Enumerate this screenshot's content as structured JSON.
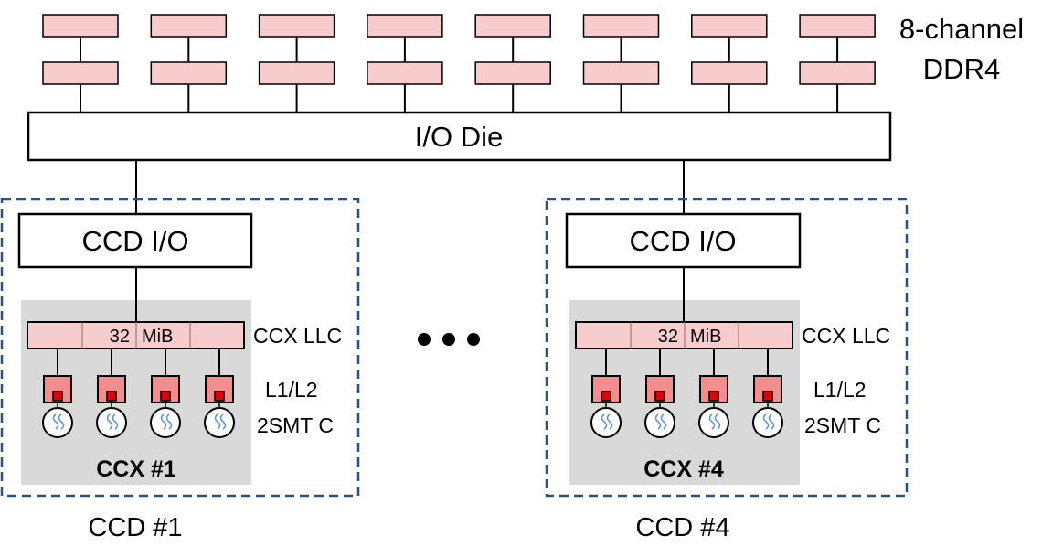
{
  "memory": {
    "label_line1": "8-channel",
    "label_line2": "DDR4",
    "channels": 8,
    "dimms_per_channel": 2
  },
  "io_die": {
    "label": "I/O Die"
  },
  "ccds": [
    {
      "id": "ccd1",
      "label": "CCD #1",
      "ccd_io_label": "CCD I/O",
      "ccx": {
        "label": "CCX #1",
        "llc_number": "32",
        "llc_unit": "MiB",
        "llc_label": "CCX LLC",
        "l1l2_label": "L1/L2",
        "core_label": "2SMT C",
        "cores": 4
      }
    },
    {
      "id": "ccd4",
      "label": "CCD #4",
      "ccd_io_label": "CCD I/O",
      "ccx": {
        "label": "CCX #4",
        "llc_number": "32",
        "llc_unit": "MiB",
        "llc_label": "CCX LLC",
        "l1l2_label": "L1/L2",
        "core_label": "2SMT C",
        "cores": 4
      }
    }
  ],
  "colors": {
    "dimm_fill": "#f8cbcd",
    "cache_fill": "#f28e8e",
    "core_dot": "#dd0000",
    "ccx_bg": "#d9d9d9",
    "dashed_border": "#2f4f7f",
    "swirl": "#5b8fd1"
  }
}
